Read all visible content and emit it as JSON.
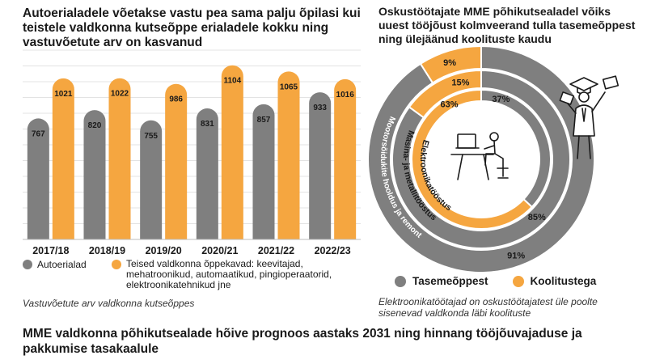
{
  "left": {
    "title": "Autoerialadele võetakse vastu pea sama palju õpilasi kui teistele valdkonna kutseõppe erialadele kokku ning vastuvõetute arv on kasvanud",
    "legend": {
      "a": "Autoerialad",
      "b": "Teised valdkonna õppekavad: keevitajad, mehatroonikud, automaatikud, pingioperaatorid, elektroonikatehnikud jne"
    },
    "caption": "Vastuvõetute arv valdkonna kutseõppes"
  },
  "right": {
    "title": "Oskustöötajate MME põhikutsealadel võiks uuest tööjõust kolmveerand tulla tasemeõppest ning ülejäänud koolituste kaudu",
    "legend": {
      "a": "Tasemeõppest",
      "b": "Koolitustega"
    },
    "caption": "Elektroonikatöötajad on oskustöötajatest üle poolte sisenevad valdkonda läbi koolituste"
  },
  "bottom_title": "MME valdkonna põhikutsealade hõive prognoos aastaks 2031 ning hinnang tööjõuvajaduse ja pakkumise tasakaalule",
  "colors": {
    "gray": "#7f7f7f",
    "orange": "#f5a640",
    "white": "#ffffff"
  },
  "chart_data": [
    {
      "type": "bar",
      "categories": [
        "2017/18",
        "2018/19",
        "2019/20",
        "2020/21",
        "2021/22",
        "2022/23"
      ],
      "series": [
        {
          "name": "Autoerialad",
          "values": [
            767,
            820,
            755,
            831,
            857,
            933
          ]
        },
        {
          "name": "Teised valdkonna õppekavad: keevitajad, mehatroonikud, automaatikud, pingioperaatorid, elektroonikatehnikud jne",
          "values": [
            1021,
            1022,
            986,
            1104,
            1065,
            1016
          ]
        }
      ],
      "ylim": [
        0,
        1200
      ],
      "grid": true,
      "legend": "bottom"
    },
    {
      "type": "pie",
      "style": "concentric-rings",
      "rings": [
        {
          "label": "Mootorsõidukite hooldus ja remont",
          "tasemeoppest": 91,
          "koolitustega": 9,
          "labels": {
            "tasemeoppest": "91%",
            "koolitustega": "9%"
          }
        },
        {
          "label": "Masina- ja metallitööstus",
          "tasemeoppest": 85,
          "koolitustega": 15,
          "labels": {
            "tasemeoppest": "85%",
            "koolitustega": "15%"
          }
        },
        {
          "label": "Elektroonikatööstus",
          "tasemeoppest": 37,
          "koolitustega": 63,
          "labels": {
            "tasemeoppest": "37%",
            "koolitustega": "63%"
          }
        }
      ],
      "legend": "bottom"
    }
  ]
}
